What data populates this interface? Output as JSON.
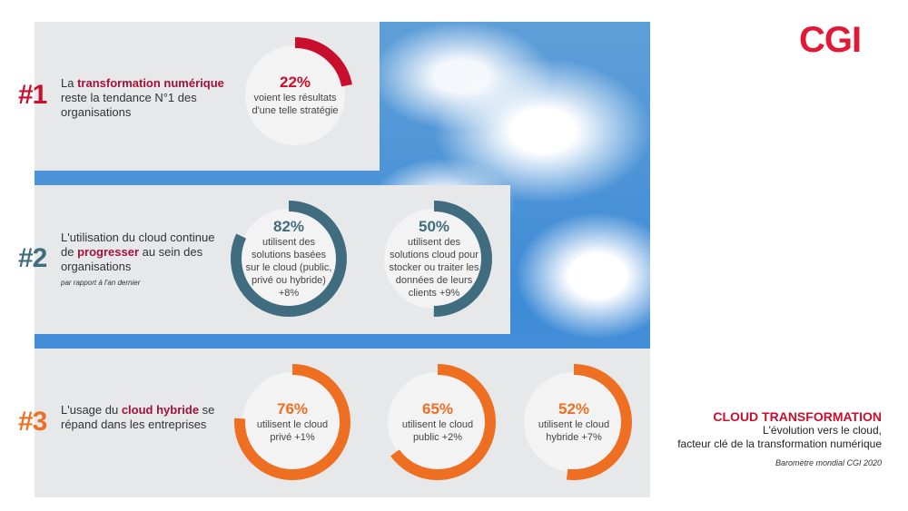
{
  "logo": "CGI",
  "colors": {
    "red": "#c8102e",
    "teal": "#3f6d7f",
    "orange": "#ee6f22",
    "panel": "#e6e8ea"
  },
  "section1": {
    "number": "#1",
    "text_a": "La ",
    "highlight": "transformation numérique",
    "text_b": " reste la tendance N°1 des organisations",
    "donuts": [
      {
        "value": 22,
        "pct": "22%",
        "desc": "voient les résultats d'une telle stratégie"
      }
    ]
  },
  "section2": {
    "number": "#2",
    "text_a": "L'utilisation du cloud continue de ",
    "highlight": "progresser",
    "text_b": " au sein des organisations",
    "note": "par rapport à l'an dernier",
    "donuts": [
      {
        "value": 82,
        "pct": "82%",
        "desc": "utilisent des solutions basées sur le cloud (public, privé ou hybride) +8%"
      },
      {
        "value": 50,
        "pct": "50%",
        "desc": "utilisent des solutions cloud pour stocker ou traiter les données de leurs clients +9%"
      }
    ]
  },
  "section3": {
    "number": "#3",
    "text_a": "L'usage du ",
    "highlight": "cloud hybride",
    "text_b": " se répand dans les entreprises",
    "donuts": [
      {
        "value": 76,
        "pct": "76%",
        "desc": "utilisent le cloud privé +1%"
      },
      {
        "value": 65,
        "pct": "65%",
        "desc": "utilisent le cloud public +2%"
      },
      {
        "value": 52,
        "pct": "52%",
        "desc": "utilisent le cloud hybride +7%"
      }
    ]
  },
  "caption": {
    "title": "CLOUD TRANSFORMATION",
    "line1": "L'évolution vers le cloud,",
    "line2": "facteur clé de la transformation numérique",
    "source": "Baromètre mondial CGI 2020"
  }
}
